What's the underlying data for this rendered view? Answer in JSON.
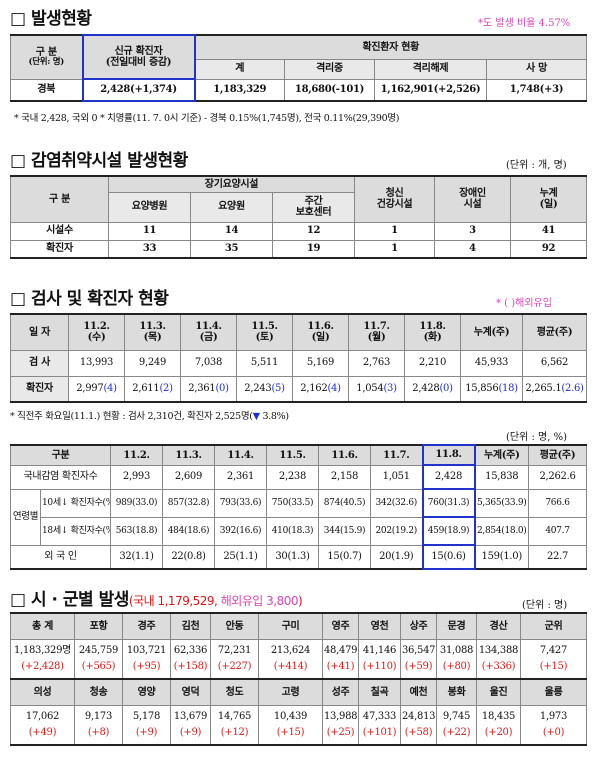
{
  "s1": {
    "title": "□ 발생현황",
    "note": "*도 발생 비율 4.57%",
    "h_gubun": "구 분",
    "h_unit": "(단위: 명)",
    "h_new": "신규 확진자",
    "h_new2": "(전일대비 증감)",
    "h_group": "확진환자 현황",
    "h_total": "계",
    "h_isol": "격리중",
    "h_release": "격리해제",
    "h_death": "사 망",
    "row": {
      "label": "경북",
      "new": "2,428(+1,374)",
      "total": "1,183,329",
      "isol": "18,680(-101)",
      "release": "1,162,901(+2,526)",
      "death": "1,748(+3)"
    },
    "foot": "* 국내 2,428, 국외 0  * 치명률(11. 7. 0시 기준) - 경북 0.15%(1,745명), 전국 0.11%(29,390명)"
  },
  "s2": {
    "title": "□ 감염취약시설 발생현황",
    "unit": "(단위 : 개, 명)",
    "h_gubun": "구 분",
    "h_longterm": "장기요양시설",
    "h_hosp": "요양병원",
    "h_home": "요양원",
    "h_day1": "주간",
    "h_day2": "보호센터",
    "h_youth1": "청신",
    "h_youth2": "건강시설",
    "h_dis1": "장애인",
    "h_dis2": "시설",
    "h_cum1": "누계",
    "h_cum2": "(일)",
    "rows": [
      {
        "label": "시설수",
        "v": [
          "11",
          "14",
          "12",
          "1",
          "3",
          "41"
        ]
      },
      {
        "label": "확진자",
        "v": [
          "33",
          "35",
          "19",
          "1",
          "4",
          "92"
        ]
      }
    ]
  },
  "s3": {
    "title": "□ 검사 및 확진자 현황",
    "note": "* ( )해외유입",
    "h_date": "일 자",
    "dates": [
      [
        "11.2.",
        "(수)"
      ],
      [
        "11.3.",
        "(목)"
      ],
      [
        "11.4.",
        "(금)"
      ],
      [
        "11.5.",
        "(토)"
      ],
      [
        "11.6.",
        "(일)"
      ],
      [
        "11.7.",
        "(월)"
      ],
      [
        "11.8.",
        "(화)"
      ]
    ],
    "h_cum": "누계(주)",
    "h_avg": "평균(주)",
    "test_label": "검 사",
    "tests": [
      "13,993",
      "9,249",
      "7,038",
      "5,511",
      "5,169",
      "2,763",
      "2,210",
      "45,933",
      "6,562"
    ],
    "conf_label": "확진자",
    "conf": [
      [
        "2,997",
        "(4)"
      ],
      [
        "2,611",
        "(2)"
      ],
      [
        "2,361",
        "(0)"
      ],
      [
        "2,243",
        "(5)"
      ],
      [
        "2,162",
        "(4)"
      ],
      [
        "1,054",
        "(3)"
      ],
      [
        "2,428",
        "(0)"
      ],
      [
        "15,856",
        "(18)"
      ],
      [
        "2,265.1",
        "(2.6)"
      ]
    ],
    "foot_a": "* 직전주 화요일(11.1.) 현황 : 검사 2,310건, 확진자 2,525명(",
    "foot_arrow": "▼",
    "foot_b": " 3.8%)"
  },
  "s4": {
    "unit": "(단위 : 명, %)",
    "h_gubun": "구분",
    "dates": [
      "11.2.",
      "11.3.",
      "11.4.",
      "11.5.",
      "11.6.",
      "11.7.",
      "11.8."
    ],
    "h_cum": "누계(주)",
    "h_avg": "평균(주)",
    "r1_label": "국내감염 확진자수",
    "r1": [
      "2,993",
      "2,609",
      "2,361",
      "2,238",
      "2,158",
      "1,051",
      "2,428",
      "15,838",
      "2,262.6"
    ],
    "age_group": "연령별",
    "r2_age": "10세↓",
    "r2_label": "확진자수(%)",
    "r2": [
      "989(33.0)",
      "857(32.8)",
      "793(33.6)",
      "750(33.5)",
      "874(40.5)",
      "342(32.6)",
      "760(31.3)",
      "5,365(33.9)",
      "766.6"
    ],
    "r3_age": "18세↓",
    "r3_label": "확진자수(%)",
    "r3": [
      "563(18.8)",
      "484(18.6)",
      "392(16.6)",
      "410(18.3)",
      "344(15.9)",
      "202(19.2)",
      "459(18.9)",
      "2,854(18.0)",
      "407.7"
    ],
    "r4_label": "외 국 인",
    "r4": [
      "32(1.1)",
      "22(0.8)",
      "25(1.1)",
      "30(1.3)",
      "15(0.7)",
      "20(1.9)",
      "15(0.6)",
      "159(1.0)",
      "22.7"
    ]
  },
  "s5": {
    "title_a": "□ 시 · 군별 발생",
    "title_b": "(국내 1,179,529, ",
    "title_c": "해외유입 3,800",
    "title_d": ")",
    "unit": "(단위 : 명)",
    "head1": [
      "총 계",
      "포항",
      "경주",
      "김천",
      "안동",
      "구미",
      "영주",
      "영천",
      "상주",
      "문경",
      "경산",
      "군위"
    ],
    "vals1": [
      "1,183,329명",
      "245,759",
      "103,721",
      "62,336",
      "72,231",
      "213,624",
      "48,479",
      "41,146",
      "36,547",
      "31,088",
      "134,388",
      "7,427"
    ],
    "inc1": [
      "(+2,428)",
      "(+565)",
      "(+95)",
      "(+158)",
      "(+227)",
      "(+414)",
      "(+41)",
      "(+110)",
      "(+59)",
      "(+80)",
      "(+336)",
      "(+15)"
    ],
    "head2": [
      "의성",
      "청송",
      "영양",
      "영덕",
      "청도",
      "고령",
      "성주",
      "칠곡",
      "예천",
      "봉화",
      "울진",
      "울릉"
    ],
    "vals2": [
      "17,062",
      "9,173",
      "5,178",
      "13,679",
      "14,765",
      "10,439",
      "13,988",
      "47,333",
      "24,813",
      "9,745",
      "18,435",
      "1,973"
    ],
    "inc2": [
      "(+49)",
      "(+8)",
      "(+9)",
      "(+9)",
      "(+12)",
      "(+15)",
      "(+25)",
      "(+101)",
      "(+58)",
      "(+22)",
      "(+20)",
      "(+0)"
    ]
  }
}
